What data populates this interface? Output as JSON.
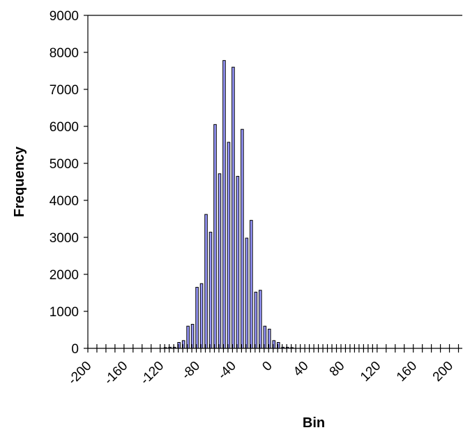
{
  "chart_data": {
    "type": "bar",
    "xlabel": "Bin",
    "ylabel": "Frequency",
    "xlim": [
      -200,
      215
    ],
    "ylim": [
      0,
      9000
    ],
    "grid": false,
    "legend": "none",
    "bar_color": "#9999ff",
    "x_ticks": [
      "-200",
      "-160",
      "-120",
      "-80",
      "-40",
      "0",
      "40",
      "80",
      "120",
      "160",
      "200"
    ],
    "y_ticks": [
      "0",
      "1000",
      "2000",
      "3000",
      "4000",
      "5000",
      "6000",
      "7000",
      "8000",
      "9000"
    ],
    "x": [
      -200,
      -190,
      -180,
      -170,
      -160,
      -150,
      -140,
      -130,
      -120,
      -115,
      -110,
      -105,
      -100,
      -95,
      -90,
      -85,
      -80,
      -75,
      -70,
      -65,
      -60,
      -55,
      -50,
      -45,
      -40,
      -35,
      -30,
      -25,
      -20,
      -15,
      -10,
      -5,
      0,
      5,
      10,
      15,
      20,
      25,
      30,
      35,
      40,
      45,
      50,
      55,
      60,
      65,
      70,
      75,
      80,
      85,
      90,
      95,
      100,
      105,
      110,
      115,
      120,
      130,
      140,
      150,
      160,
      170,
      180,
      190,
      200,
      210
    ],
    "values": [
      0,
      0,
      0,
      0,
      0,
      0,
      0,
      0,
      0,
      20,
      30,
      30,
      160,
      210,
      600,
      650,
      1650,
      1750,
      3620,
      3140,
      6050,
      4720,
      7780,
      5570,
      7600,
      4650,
      5920,
      2980,
      3460,
      1520,
      1570,
      600,
      520,
      210,
      160,
      30,
      30,
      20,
      0,
      0,
      0,
      0,
      0,
      0,
      0,
      0,
      0,
      0,
      0,
      0,
      0,
      0,
      0,
      0,
      0,
      0,
      0,
      0,
      0,
      0,
      0,
      0,
      0,
      0,
      0,
      0
    ]
  }
}
